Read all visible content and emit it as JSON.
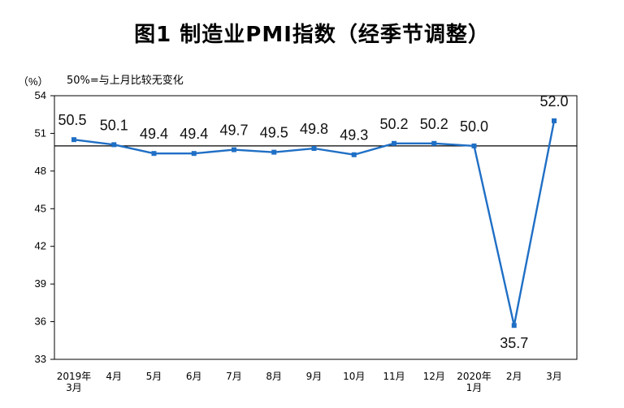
{
  "chart_data": {
    "type": "line",
    "title": "图1  制造业PMI指数（经季节调整）",
    "unit_label": "（%）",
    "reference_note": "50%=与上月比较无变化",
    "reference_value": 50,
    "ylim": [
      33,
      54
    ],
    "yticks": [
      33,
      36,
      39,
      42,
      45,
      48,
      51,
      54
    ],
    "grid": false,
    "categories": [
      [
        "2019年",
        "3月"
      ],
      [
        "4月"
      ],
      [
        "5月"
      ],
      [
        "6月"
      ],
      [
        "7月"
      ],
      [
        "8月"
      ],
      [
        "9月"
      ],
      [
        "10月"
      ],
      [
        "11月"
      ],
      [
        "12月"
      ],
      [
        "2020年",
        "1月"
      ],
      [
        "2月"
      ],
      [
        "3月"
      ]
    ],
    "series": [
      {
        "values": [
          50.5,
          50.1,
          49.4,
          49.4,
          49.7,
          49.5,
          49.8,
          49.3,
          50.2,
          50.2,
          50.0,
          35.7,
          52.0
        ],
        "labels": [
          "50.5",
          "50.1",
          "49.4",
          "49.4",
          "49.7",
          "49.5",
          "49.8",
          "49.3",
          "50.2",
          "50.2",
          "50.0",
          "35.7",
          "52.0"
        ],
        "color": "#1f6fc5"
      }
    ]
  }
}
